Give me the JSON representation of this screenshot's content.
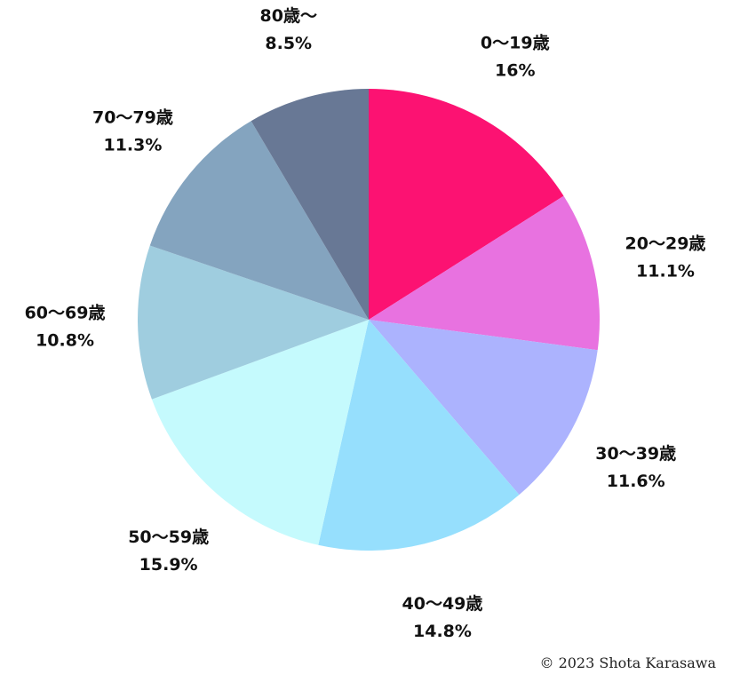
{
  "chart_data": {
    "type": "pie",
    "title": "",
    "start_angle": "12 o'clock",
    "direction": "clockwise",
    "slices": [
      {
        "label": "0〜19歳",
        "value": 16,
        "value_label": "16%",
        "color": "#fc1272"
      },
      {
        "label": "20〜29歳",
        "value": 11.1,
        "value_label": "11.1%",
        "color": "#e872e0"
      },
      {
        "label": "30〜39歳",
        "value": 11.6,
        "value_label": "11.6%",
        "color": "#acb3fe"
      },
      {
        "label": "40〜49歳",
        "value": 14.8,
        "value_label": "14.8%",
        "color": "#96dffd"
      },
      {
        "label": "50〜59歳",
        "value": 15.9,
        "value_label": "15.9%",
        "color": "#c5fafd"
      },
      {
        "label": "60〜69歳",
        "value": 10.8,
        "value_label": "10.8%",
        "color": "#9fcddf"
      },
      {
        "label": "70〜79歳",
        "value": 11.3,
        "value_label": "11.3%",
        "color": "#84a4bf"
      },
      {
        "label": "80歳〜",
        "value": 8.5,
        "value_label": "8.5%",
        "color": "#687895"
      }
    ]
  },
  "footer": {
    "copyright": "© 2023 Shota Karasawa"
  }
}
